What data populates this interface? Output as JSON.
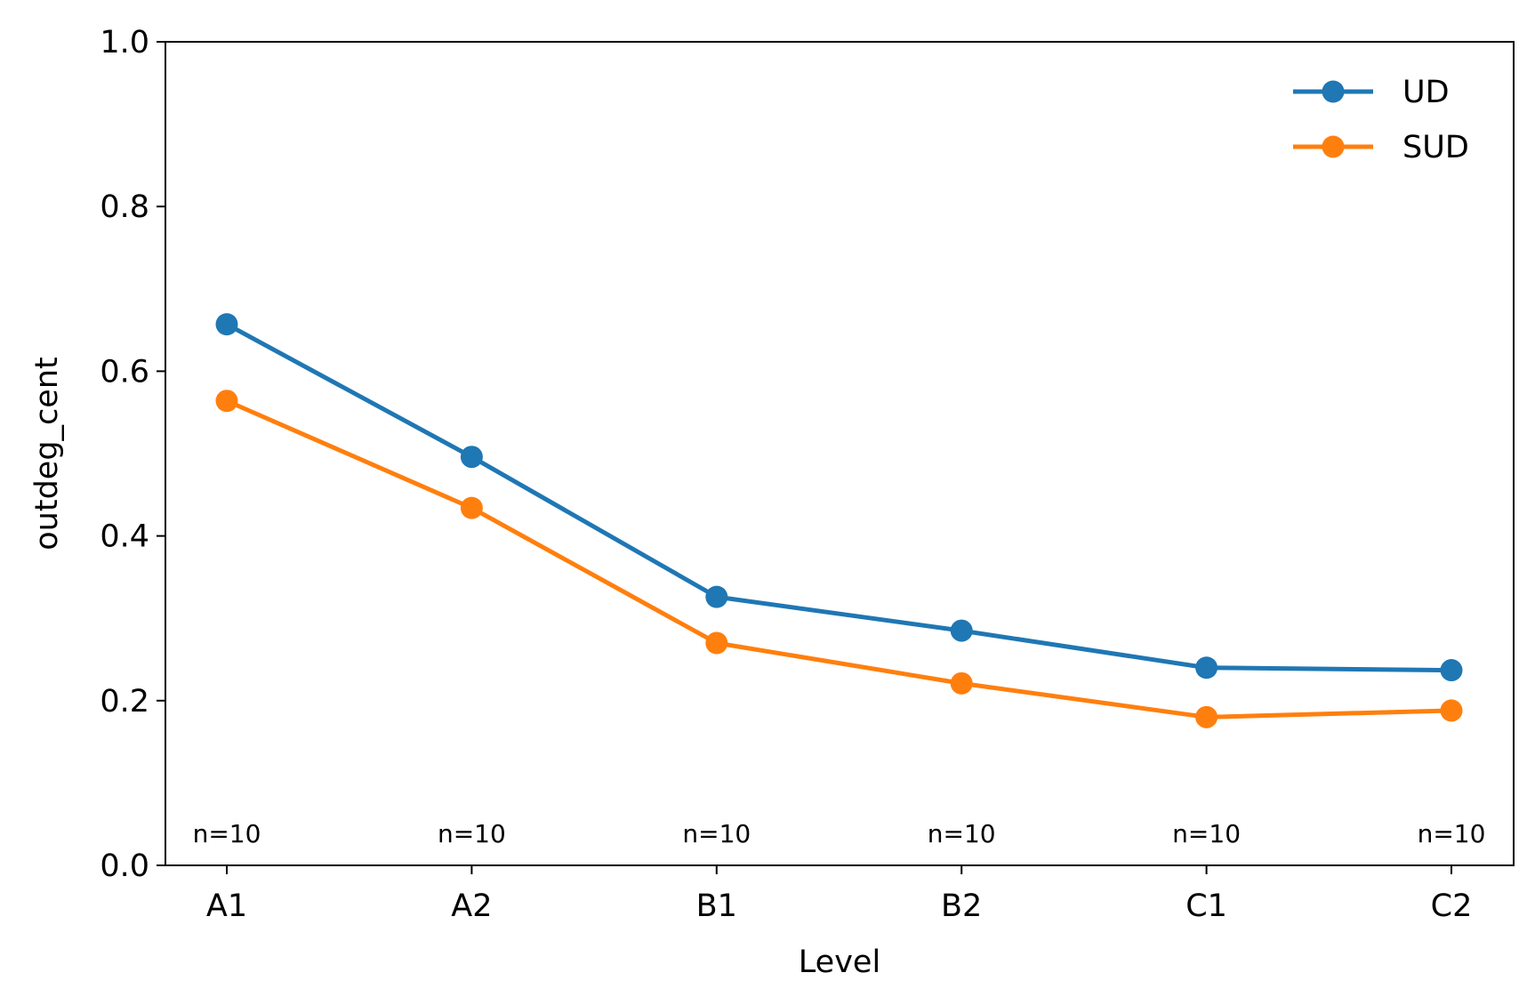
{
  "chart_data": {
    "type": "line",
    "xlabel": "Level",
    "ylabel": "outdeg_cent",
    "categories": [
      "A1",
      "A2",
      "B1",
      "B2",
      "C1",
      "C2"
    ],
    "ylim": [
      0.0,
      1.0
    ],
    "yticks": [
      "0.0",
      "0.2",
      "0.4",
      "0.6",
      "0.8",
      "1.0"
    ],
    "series": [
      {
        "name": "UD",
        "color": "#1f77b4",
        "values": [
          0.657,
          0.496,
          0.326,
          0.285,
          0.24,
          0.237
        ]
      },
      {
        "name": "SUD",
        "color": "#ff7f0e",
        "values": [
          0.564,
          0.434,
          0.27,
          0.221,
          0.18,
          0.188
        ]
      }
    ],
    "annotations": [
      "n=10",
      "n=10",
      "n=10",
      "n=10",
      "n=10",
      "n=10"
    ],
    "legend_position": "top-right",
    "grid": false
  }
}
